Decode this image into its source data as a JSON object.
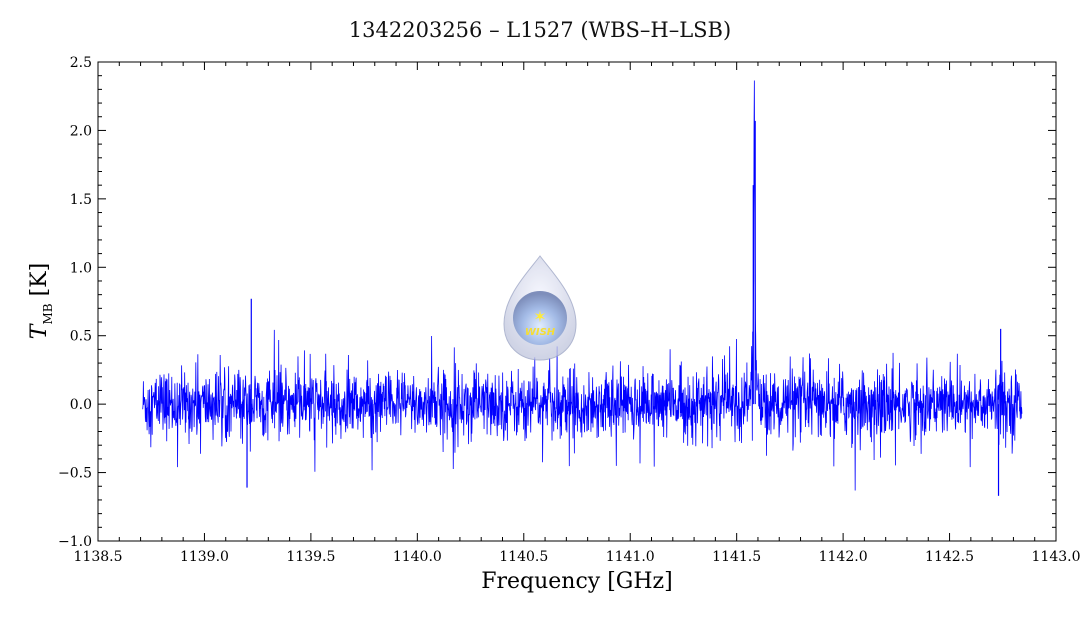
{
  "chart_data": {
    "type": "line",
    "title": "1342203256 – L1527 (WBS–H–LSB)",
    "xlabel": "Frequency [GHz]",
    "ylabel_main": "T",
    "ylabel_sub": "MB",
    "ylabel_unit": "[K]",
    "xlim": [
      1138.5,
      1143.0
    ],
    "ylim": [
      -1.0,
      2.5
    ],
    "xticks": [
      "1138.5",
      "1139.0",
      "1139.5",
      "1140.0",
      "1140.5",
      "1141.0",
      "1141.5",
      "1142.0",
      "1142.5",
      "1143.0"
    ],
    "yticks": [
      "−1.0",
      "−0.5",
      "0.0",
      "0.5",
      "1.0",
      "1.5",
      "2.0",
      "2.5"
    ],
    "grid": false,
    "line_color": "#0000ff",
    "series": [
      {
        "x_range": [
          1138.71,
          1142.84
        ],
        "noise_rms": 0.12,
        "peaks": [
          {
            "x": 1141.587,
            "y": 2.07
          },
          {
            "x": 1141.578,
            "y": 1.6
          },
          {
            "x": 1139.22,
            "y": 0.77
          },
          {
            "x": 1142.73,
            "y": -0.67
          },
          {
            "x": 1142.74,
            "y": 0.55
          },
          {
            "x": 1139.2,
            "y": -0.61
          }
        ]
      }
    ]
  },
  "logo": {
    "text": "WISH"
  }
}
